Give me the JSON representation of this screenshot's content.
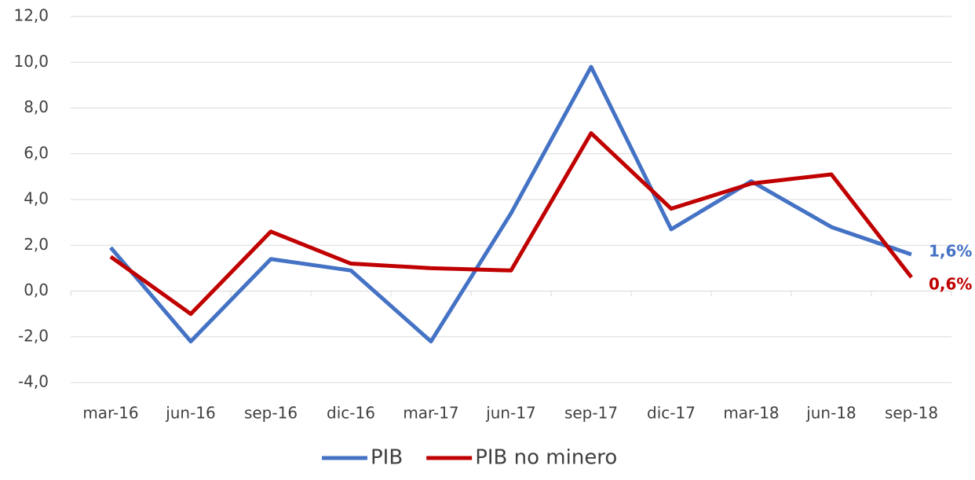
{
  "chart_data": {
    "type": "line",
    "categories": [
      "mar-16",
      "jun-16",
      "sep-16",
      "dic-16",
      "mar-17",
      "jun-17",
      "sep-17",
      "dic-17",
      "mar-18",
      "jun-18",
      "sep-18"
    ],
    "series": [
      {
        "name": "PIB",
        "color": "#4472c4",
        "values": [
          1.9,
          -2.2,
          1.4,
          0.9,
          -2.2,
          3.4,
          9.8,
          2.7,
          4.8,
          2.8,
          1.6
        ],
        "value_labels": [
          null,
          null,
          null,
          null,
          null,
          null,
          null,
          null,
          null,
          null,
          "1,6%"
        ]
      },
      {
        "name": "PIB no minero",
        "color": "#c00000",
        "values": [
          1.5,
          -1.0,
          2.6,
          1.2,
          1.0,
          0.9,
          6.9,
          3.6,
          4.7,
          5.1,
          0.6
        ],
        "value_labels": [
          null,
          null,
          null,
          null,
          null,
          null,
          null,
          null,
          null,
          null,
          "0,6%"
        ]
      }
    ],
    "ylim": [
      -4,
      12
    ],
    "yticks": [
      {
        "value": -4,
        "label": "-4,0"
      },
      {
        "value": -2,
        "label": "-2,0"
      },
      {
        "value": 0,
        "label": "0,0"
      },
      {
        "value": 2,
        "label": "2,0"
      },
      {
        "value": 4,
        "label": "4,0"
      },
      {
        "value": 6,
        "label": "6,0"
      },
      {
        "value": 8,
        "label": "8,0"
      },
      {
        "value": 10,
        "label": "10,0"
      },
      {
        "value": 12,
        "label": "12,0"
      }
    ],
    "grid": true,
    "legend": "bottom"
  }
}
